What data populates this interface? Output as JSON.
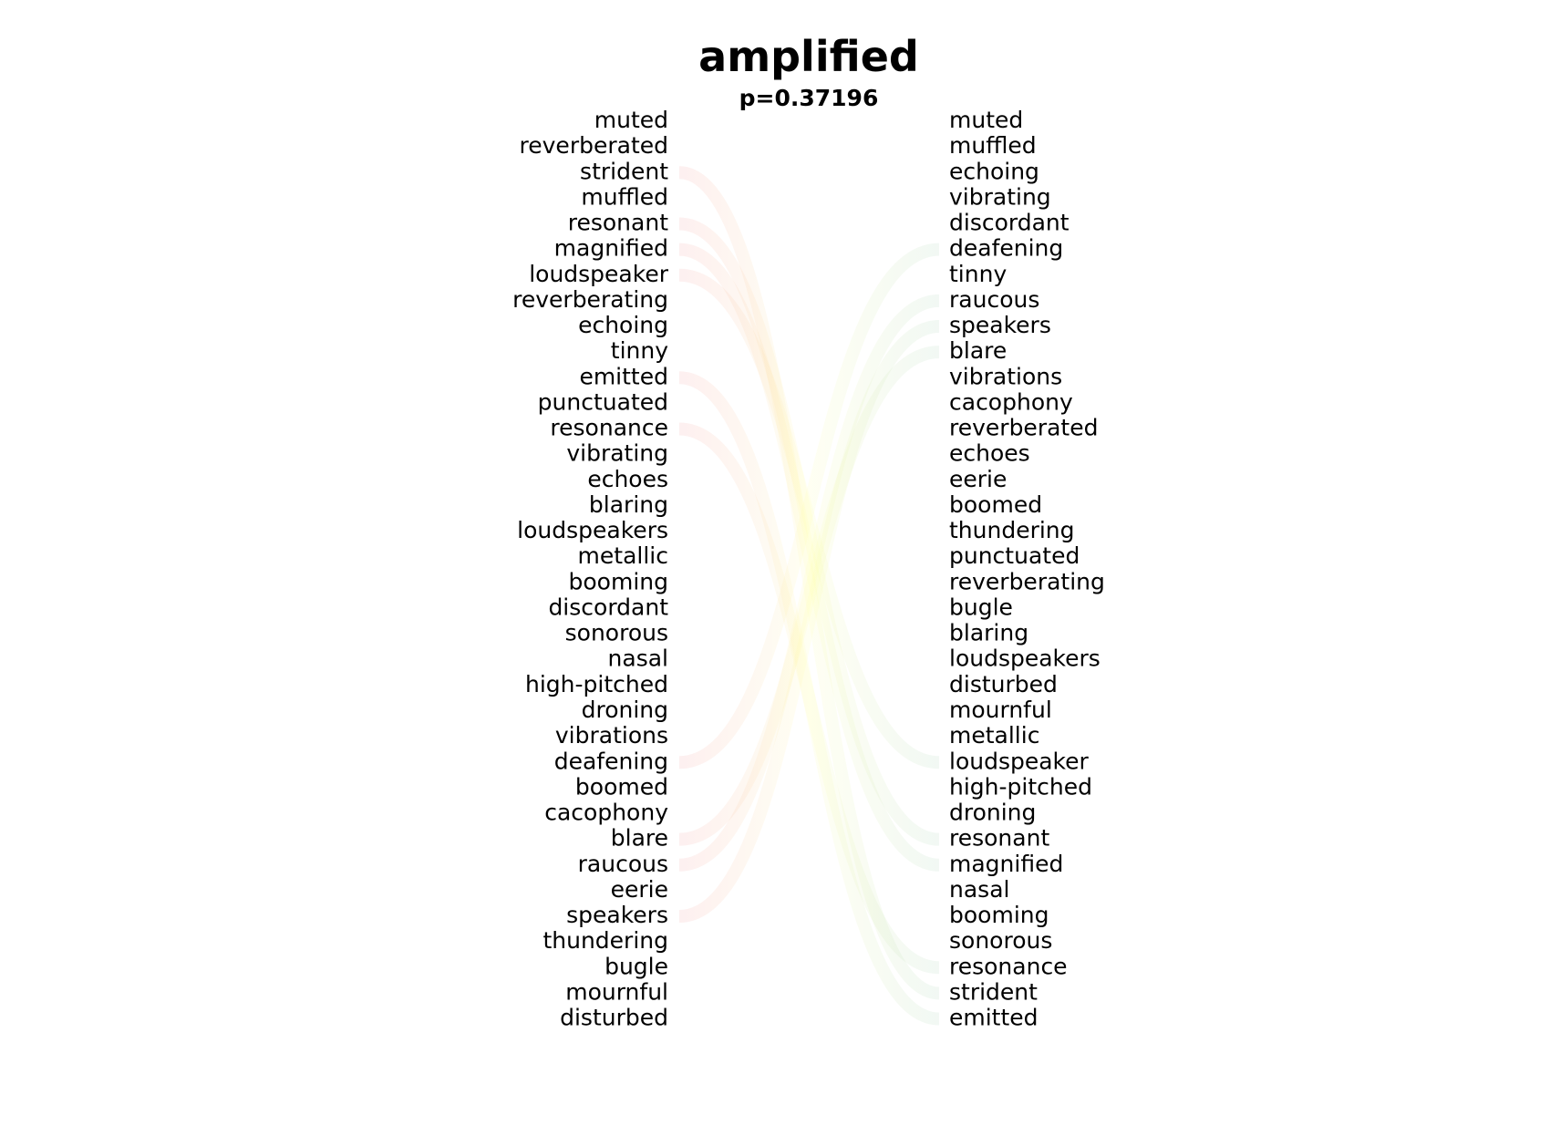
{
  "chart_data": {
    "type": "bump",
    "title": "amplified",
    "subtitle": "p=0.37196",
    "left_ranking": [
      "muted",
      "reverberated",
      "strident",
      "muffled",
      "resonant",
      "magnified",
      "loudspeaker",
      "reverberating",
      "echoing",
      "tinny",
      "emitted",
      "punctuated",
      "resonance",
      "vibrating",
      "echoes",
      "blaring",
      "loudspeakers",
      "metallic",
      "booming",
      "discordant",
      "sonorous",
      "nasal",
      "high-pitched",
      "droning",
      "vibrations",
      "deafening",
      "boomed",
      "cacophony",
      "blare",
      "raucous",
      "eerie",
      "speakers",
      "thundering",
      "bugle",
      "mournful",
      "disturbed"
    ],
    "right_ranking": [
      "muted",
      "muffled",
      "echoing",
      "vibrating",
      "discordant",
      "deafening",
      "tinny",
      "raucous",
      "speakers",
      "blare",
      "vibrations",
      "cacophony",
      "reverberated",
      "echoes",
      "eerie",
      "boomed",
      "thundering",
      "punctuated",
      "reverberating",
      "bugle",
      "blaring",
      "loudspeakers",
      "disturbed",
      "mournful",
      "metallic",
      "loudspeaker",
      "high-pitched",
      "droning",
      "resonant",
      "magnified",
      "nasal",
      "booming",
      "sonorous",
      "resonance",
      "strident",
      "emitted"
    ],
    "highlighted_words": [
      "strident",
      "resonant",
      "magnified",
      "loudspeaker",
      "emitted",
      "resonance",
      "deafening",
      "blare",
      "raucous",
      "speakers"
    ],
    "colors": {
      "left_end": "#f08080",
      "middle": "#ffff99",
      "right_end": "#90c8a0"
    },
    "curve_opacity": 0.12
  }
}
